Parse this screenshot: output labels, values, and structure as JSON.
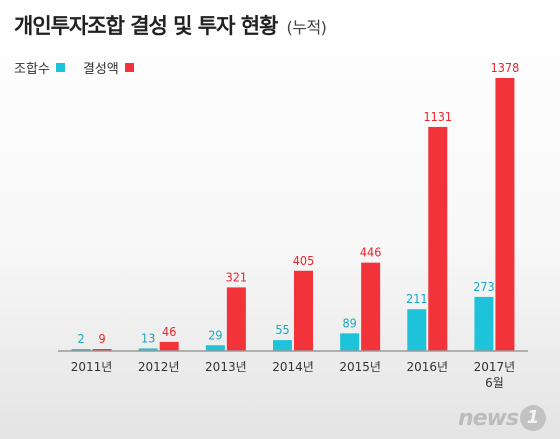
{
  "header": {
    "title": "개인투자조합 결성 및 투자 현황",
    "subtitle": "(누적)"
  },
  "brand": {
    "word": "news",
    "mark": "1"
  },
  "chart_data": {
    "type": "bar",
    "title": "개인투자조합 결성 및 투자 현황 (누적)",
    "categories": [
      "2011년",
      "2012년",
      "2013년",
      "2014년",
      "2015년",
      "2016년",
      "2017년 6월"
    ],
    "series": [
      {
        "name": "조합수",
        "color": "#1ec3d9",
        "label_color": "#16a9bf",
        "values": [
          2,
          13,
          29,
          55,
          89,
          211,
          273
        ]
      },
      {
        "name": "결성액",
        "color": "#f2333a",
        "label_color": "#e8262d",
        "values": [
          9,
          46,
          321,
          405,
          446,
          1131,
          1378
        ]
      }
    ],
    "ylim": [
      0,
      1378
    ],
    "grid": false,
    "legend_position": "top-left",
    "axis_color": "#9a9a9a"
  }
}
